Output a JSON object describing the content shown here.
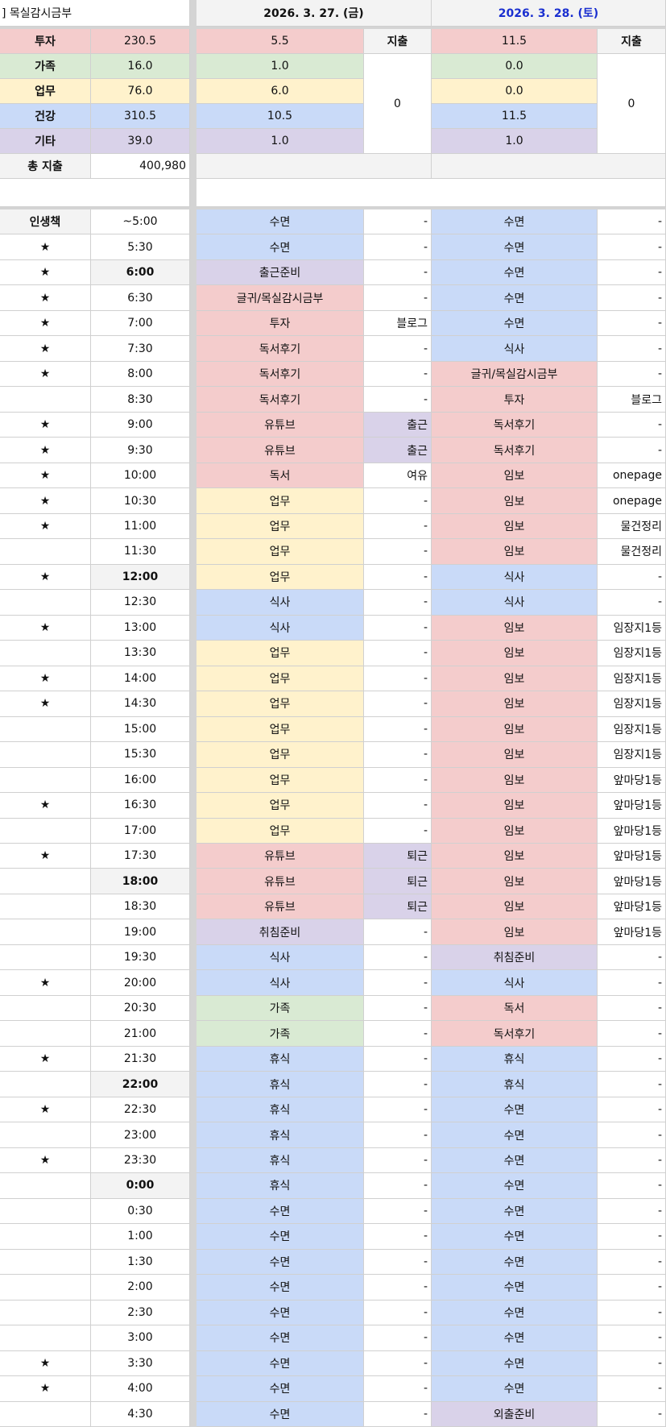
{
  "title": "] 목실감시금부",
  "days": [
    {
      "date": "2026. 3. 27. (금)",
      "color": "#111111"
    },
    {
      "date": "2026. 3. 28. (토)",
      "color": "#1a2fd0"
    }
  ],
  "colors": {
    "red": "#f4cccc",
    "green": "#d9ead3",
    "yellow": "#fff2cc",
    "blue": "#c9daf8",
    "purple": "#d9d2e9",
    "gray": "#f3f3f3"
  },
  "category_colors": {
    "수면": "blue",
    "식사": "blue",
    "휴식": "blue",
    "출근준비": "purple",
    "취침준비": "purple",
    "외출준비": "purple",
    "글귀/목실감시금부": "red",
    "투자": "red",
    "독서후기": "red",
    "유튜브": "red",
    "독서": "red",
    "임보": "red",
    "업무": "yellow",
    "가족": "green",
    "출근": "purple",
    "퇴근": "purple"
  },
  "summary": {
    "rows": [
      {
        "label": "투자",
        "total": "230.5",
        "d1": "5.5",
        "d2": "11.5",
        "color": "red"
      },
      {
        "label": "가족",
        "total": "16.0",
        "d1": "1.0",
        "d2": "0.0",
        "color": "green"
      },
      {
        "label": "업무",
        "total": "76.0",
        "d1": "6.0",
        "d2": "0.0",
        "color": "yellow"
      },
      {
        "label": "건강",
        "total": "310.5",
        "d1": "10.5",
        "d2": "11.5",
        "color": "blue"
      },
      {
        "label": "기타",
        "total": "39.0",
        "d1": "1.0",
        "d2": "1.0",
        "color": "purple"
      }
    ],
    "expense_label": "지출",
    "expense_d1": "0",
    "expense_d2": "0",
    "total_label": "총 지출",
    "total_value": "400,980"
  },
  "schedule_header": "인생책",
  "star": "★",
  "rows": [
    {
      "t": "~5:00",
      "s": 0,
      "a": [
        "수면",
        "-"
      ],
      "b": [
        "수면",
        "-"
      ]
    },
    {
      "t": "5:30",
      "s": 1,
      "a": [
        "수면",
        "-"
      ],
      "b": [
        "수면",
        "-"
      ]
    },
    {
      "t": "6:00",
      "s": 1,
      "h": 1,
      "a": [
        "출근준비",
        "-"
      ],
      "b": [
        "수면",
        "-"
      ]
    },
    {
      "t": "6:30",
      "s": 1,
      "a": [
        "글귀/목실감시금부",
        "-"
      ],
      "b": [
        "수면",
        "-"
      ]
    },
    {
      "t": "7:00",
      "s": 1,
      "a": [
        "투자",
        "블로그"
      ],
      "b": [
        "수면",
        "-"
      ]
    },
    {
      "t": "7:30",
      "s": 1,
      "a": [
        "독서후기",
        "-"
      ],
      "b": [
        "식사",
        "-"
      ]
    },
    {
      "t": "8:00",
      "s": 1,
      "a": [
        "독서후기",
        "-"
      ],
      "b": [
        "글귀/목실감시금부",
        "-"
      ]
    },
    {
      "t": "8:30",
      "s": 0,
      "a": [
        "독서후기",
        "-"
      ],
      "b": [
        "투자",
        "블로그"
      ]
    },
    {
      "t": "9:00",
      "s": 1,
      "a": [
        "유튜브",
        "출근"
      ],
      "b": [
        "독서후기",
        "-"
      ]
    },
    {
      "t": "9:30",
      "s": 1,
      "a": [
        "유튜브",
        "출근"
      ],
      "b": [
        "독서후기",
        "-"
      ]
    },
    {
      "t": "10:00",
      "s": 1,
      "a": [
        "독서",
        "여유"
      ],
      "b": [
        "임보",
        "onepage"
      ]
    },
    {
      "t": "10:30",
      "s": 1,
      "a": [
        "업무",
        "-"
      ],
      "b": [
        "임보",
        "onepage"
      ]
    },
    {
      "t": "11:00",
      "s": 1,
      "a": [
        "업무",
        "-"
      ],
      "b": [
        "임보",
        "물건정리"
      ]
    },
    {
      "t": "11:30",
      "s": 0,
      "a": [
        "업무",
        "-"
      ],
      "b": [
        "임보",
        "물건정리"
      ]
    },
    {
      "t": "12:00",
      "s": 1,
      "h": 1,
      "a": [
        "업무",
        "-"
      ],
      "b": [
        "식사",
        "-"
      ]
    },
    {
      "t": "12:30",
      "s": 0,
      "a": [
        "식사",
        "-"
      ],
      "b": [
        "식사",
        "-"
      ]
    },
    {
      "t": "13:00",
      "s": 1,
      "a": [
        "식사",
        "-"
      ],
      "b": [
        "임보",
        "임장지1등"
      ]
    },
    {
      "t": "13:30",
      "s": 0,
      "a": [
        "업무",
        "-"
      ],
      "b": [
        "임보",
        "임장지1등"
      ]
    },
    {
      "t": "14:00",
      "s": 1,
      "a": [
        "업무",
        "-"
      ],
      "b": [
        "임보",
        "임장지1등"
      ]
    },
    {
      "t": "14:30",
      "s": 1,
      "a": [
        "업무",
        "-"
      ],
      "b": [
        "임보",
        "임장지1등"
      ]
    },
    {
      "t": "15:00",
      "s": 0,
      "a": [
        "업무",
        "-"
      ],
      "b": [
        "임보",
        "임장지1등"
      ]
    },
    {
      "t": "15:30",
      "s": 0,
      "a": [
        "업무",
        "-"
      ],
      "b": [
        "임보",
        "임장지1등"
      ]
    },
    {
      "t": "16:00",
      "s": 0,
      "a": [
        "업무",
        "-"
      ],
      "b": [
        "임보",
        "앞마당1등"
      ]
    },
    {
      "t": "16:30",
      "s": 1,
      "a": [
        "업무",
        "-"
      ],
      "b": [
        "임보",
        "앞마당1등"
      ]
    },
    {
      "t": "17:00",
      "s": 0,
      "a": [
        "업무",
        "-"
      ],
      "b": [
        "임보",
        "앞마당1등"
      ]
    },
    {
      "t": "17:30",
      "s": 1,
      "a": [
        "유튜브",
        "퇴근"
      ],
      "b": [
        "임보",
        "앞마당1등"
      ]
    },
    {
      "t": "18:00",
      "s": 0,
      "h": 1,
      "a": [
        "유튜브",
        "퇴근"
      ],
      "b": [
        "임보",
        "앞마당1등"
      ]
    },
    {
      "t": "18:30",
      "s": 0,
      "a": [
        "유튜브",
        "퇴근"
      ],
      "b": [
        "임보",
        "앞마당1등"
      ]
    },
    {
      "t": "19:00",
      "s": 0,
      "a": [
        "취침준비",
        "-"
      ],
      "b": [
        "임보",
        "앞마당1등"
      ]
    },
    {
      "t": "19:30",
      "s": 0,
      "a": [
        "식사",
        "-"
      ],
      "b": [
        "취침준비",
        "-"
      ]
    },
    {
      "t": "20:00",
      "s": 1,
      "a": [
        "식사",
        "-"
      ],
      "b": [
        "식사",
        "-"
      ]
    },
    {
      "t": "20:30",
      "s": 0,
      "a": [
        "가족",
        "-"
      ],
      "b": [
        "독서",
        "-"
      ]
    },
    {
      "t": "21:00",
      "s": 0,
      "a": [
        "가족",
        "-"
      ],
      "b": [
        "독서후기",
        "-"
      ]
    },
    {
      "t": "21:30",
      "s": 1,
      "a": [
        "휴식",
        "-"
      ],
      "b": [
        "휴식",
        "-"
      ]
    },
    {
      "t": "22:00",
      "s": 0,
      "h": 1,
      "a": [
        "휴식",
        "-"
      ],
      "b": [
        "휴식",
        "-"
      ]
    },
    {
      "t": "22:30",
      "s": 1,
      "a": [
        "휴식",
        "-"
      ],
      "b": [
        "수면",
        "-"
      ]
    },
    {
      "t": "23:00",
      "s": 0,
      "a": [
        "휴식",
        "-"
      ],
      "b": [
        "수면",
        "-"
      ]
    },
    {
      "t": "23:30",
      "s": 1,
      "a": [
        "휴식",
        "-"
      ],
      "b": [
        "수면",
        "-"
      ]
    },
    {
      "t": "0:00",
      "s": 0,
      "h": 1,
      "a": [
        "휴식",
        "-"
      ],
      "b": [
        "수면",
        "-"
      ]
    },
    {
      "t": "0:30",
      "s": 0,
      "a": [
        "수면",
        "-"
      ],
      "b": [
        "수면",
        "-"
      ]
    },
    {
      "t": "1:00",
      "s": 0,
      "a": [
        "수면",
        "-"
      ],
      "b": [
        "수면",
        "-"
      ]
    },
    {
      "t": "1:30",
      "s": 0,
      "a": [
        "수면",
        "-"
      ],
      "b": [
        "수면",
        "-"
      ]
    },
    {
      "t": "2:00",
      "s": 0,
      "a": [
        "수면",
        "-"
      ],
      "b": [
        "수면",
        "-"
      ]
    },
    {
      "t": "2:30",
      "s": 0,
      "a": [
        "수면",
        "-"
      ],
      "b": [
        "수면",
        "-"
      ]
    },
    {
      "t": "3:00",
      "s": 0,
      "a": [
        "수면",
        "-"
      ],
      "b": [
        "수면",
        "-"
      ]
    },
    {
      "t": "3:30",
      "s": 1,
      "a": [
        "수면",
        "-"
      ],
      "b": [
        "수면",
        "-"
      ]
    },
    {
      "t": "4:00",
      "s": 1,
      "a": [
        "수면",
        "-"
      ],
      "b": [
        "수면",
        "-"
      ]
    },
    {
      "t": "4:30",
      "s": 0,
      "a": [
        "수면",
        "-"
      ],
      "b": [
        "외출준비",
        "-"
      ]
    }
  ]
}
